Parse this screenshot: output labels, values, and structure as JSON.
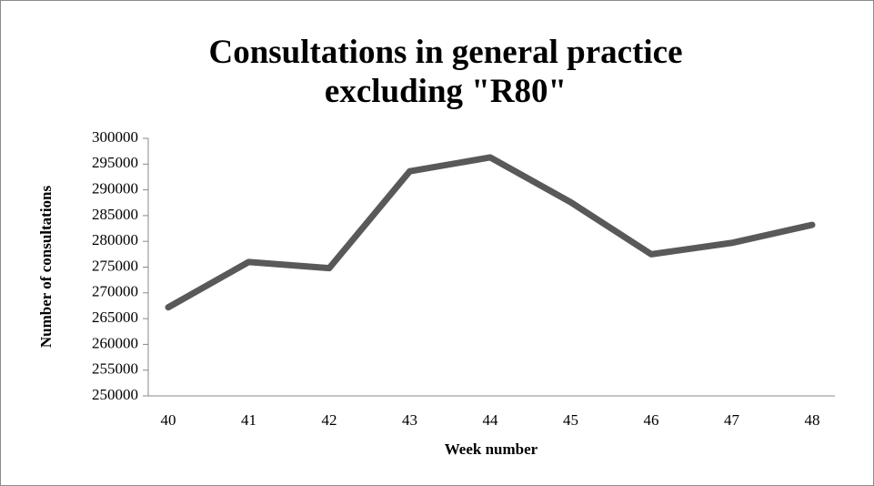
{
  "chart_data": {
    "type": "line",
    "title": "Consultations in general practice excluding \"R80\"",
    "x_label": "Week number",
    "y_label": "Number of consultations",
    "categories": [
      "40",
      "41",
      "42",
      "43",
      "44",
      "45",
      "46",
      "47",
      "48"
    ],
    "values": [
      267200,
      276000,
      274800,
      293600,
      296300,
      287600,
      277500,
      279700,
      283200
    ],
    "color": "#595959",
    "ylim": [
      250000,
      300000
    ],
    "yticks": [
      250000,
      255000,
      260000,
      265000,
      270000,
      275000,
      280000,
      285000,
      290000,
      295000,
      300000
    ],
    "grid": false
  }
}
